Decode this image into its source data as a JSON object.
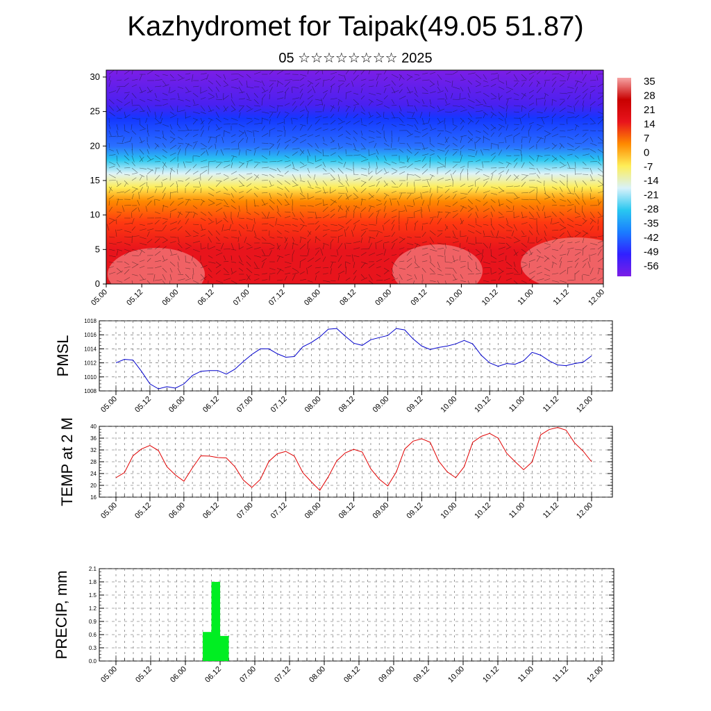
{
  "title": "Kazhydromet for Taipak(49.05 51.87)",
  "subtitle": "05 ☆☆☆☆☆☆☆☆ 2025",
  "chart_data": [
    {
      "type": "heatmap",
      "name": "cross-section",
      "x_ticks": [
        "05.00",
        "05.12",
        "06.00",
        "06.12",
        "07.00",
        "07.12",
        "08.00",
        "08.12",
        "09.00",
        "09.12",
        "10.00",
        "10.12",
        "11.00",
        "11.12",
        "12.00"
      ],
      "y_ticks": [
        0,
        5,
        10,
        15,
        20,
        25,
        30
      ],
      "ylim": [
        0,
        31
      ],
      "colorbar_labels": [
        "35",
        "28",
        "21",
        "14",
        "7",
        "0",
        "-7",
        "-14",
        "-21",
        "-28",
        "-35",
        "-42",
        "-49",
        "-56"
      ],
      "colorbar_range": [
        -63,
        42
      ],
      "overlay": "wind barbs",
      "profile": [
        {
          "level": 0,
          "value": 28
        },
        {
          "level": 5,
          "value": 21
        },
        {
          "level": 9,
          "value": 14
        },
        {
          "level": 12,
          "value": 7
        },
        {
          "level": 14,
          "value": 0
        },
        {
          "level": 16,
          "value": -7
        },
        {
          "level": 18,
          "value": -21
        },
        {
          "level": 20,
          "value": -35
        },
        {
          "level": 24,
          "value": -49
        },
        {
          "level": 26,
          "value": -56
        },
        {
          "level": 31,
          "value": -56
        }
      ],
      "colors": {
        "warm_light": "#f6a3a3",
        "red": "#e8141c",
        "orange": "#fe8a00",
        "yellow": "#feee58",
        "cyan": "#29c7f0",
        "blue": "#1437ff",
        "violet": "#7c1ee6"
      }
    },
    {
      "type": "line",
      "ylabel": "PMSL",
      "ylim": [
        1008,
        1018
      ],
      "y_ticks": [
        1008,
        1010,
        1012,
        1014,
        1016,
        1018
      ],
      "x_ticks": [
        "05.00",
        "05.12",
        "06.00",
        "06.12",
        "07.00",
        "07.12",
        "08.00",
        "08.12",
        "09.00",
        "09.12",
        "10.00",
        "10.12",
        "11.00",
        "11.12",
        "12.00"
      ],
      "step_hours": 3,
      "color": "#0000cc",
      "values": [
        1012.0,
        1012.5,
        1012.4,
        1010.8,
        1009.0,
        1008.3,
        1008.6,
        1008.4,
        1009.0,
        1010.2,
        1010.8,
        1010.9,
        1010.9,
        1010.4,
        1011.1,
        1012.2,
        1013.2,
        1014.0,
        1014.0,
        1013.3,
        1012.8,
        1012.9,
        1014.3,
        1014.9,
        1015.7,
        1016.8,
        1016.9,
        1015.8,
        1014.8,
        1014.5,
        1015.3,
        1015.6,
        1015.9,
        1016.9,
        1016.7,
        1015.4,
        1014.4,
        1013.9,
        1014.2,
        1014.4,
        1014.7,
        1015.2,
        1014.7,
        1013.1,
        1012.0,
        1011.5,
        1011.9,
        1011.8,
        1012.3,
        1013.5,
        1013.1,
        1012.3,
        1011.7,
        1011.6,
        1011.9,
        1012.1,
        1013.0
      ]
    },
    {
      "type": "line",
      "ylabel": "TEMP at 2 M",
      "ylim": [
        16,
        40
      ],
      "y_ticks": [
        16,
        20,
        24,
        28,
        32,
        36,
        40
      ],
      "x_ticks": [
        "05.00",
        "05.12",
        "06.00",
        "06.12",
        "07.00",
        "07.12",
        "08.00",
        "08.12",
        "09.00",
        "09.12",
        "10.00",
        "10.12",
        "11.00",
        "11.12",
        "12.00"
      ],
      "step_hours": 3,
      "color": "#e00000",
      "values": [
        22.6,
        24.3,
        30.0,
        32.3,
        33.5,
        31.8,
        26.3,
        23.5,
        21.4,
        25.9,
        30.0,
        29.9,
        29.4,
        29.3,
        26.3,
        21.8,
        19.3,
        22.0,
        28.1,
        30.7,
        31.5,
        29.9,
        24.3,
        21.2,
        18.3,
        22.9,
        28.3,
        31.0,
        32.2,
        31.3,
        25.6,
        22.1,
        19.8,
        24.5,
        32.3,
        35.0,
        35.8,
        34.6,
        28.2,
        24.6,
        22.6,
        26.3,
        34.6,
        36.6,
        37.6,
        36.0,
        30.9,
        28.0,
        25.3,
        27.9,
        37.1,
        38.9,
        39.6,
        38.7,
        34.4,
        31.6,
        28.0
      ]
    },
    {
      "type": "bar",
      "ylabel": "PRECIP, mm",
      "ylim": [
        0,
        2.1
      ],
      "y_ticks": [
        "0.0",
        "0.3",
        "0.6",
        "0.9",
        "1.2",
        "1.5",
        "1.8",
        "2.1"
      ],
      "x_ticks": [
        "05.00",
        "05.12",
        "06.00",
        "06.12",
        "07.00",
        "07.12",
        "08.00",
        "08.12",
        "09.00",
        "09.12",
        "10.00",
        "10.12",
        "11.00",
        "11.12",
        "12.00"
      ],
      "step_hours": 3,
      "color": "#00ee22",
      "bars": [
        {
          "start_hour": 30,
          "end_hour": 33,
          "value": 0.66
        },
        {
          "start_hour": 33,
          "end_hour": 36,
          "value": 1.8
        },
        {
          "start_hour": 36,
          "end_hour": 39,
          "value": 0.57
        }
      ]
    }
  ]
}
